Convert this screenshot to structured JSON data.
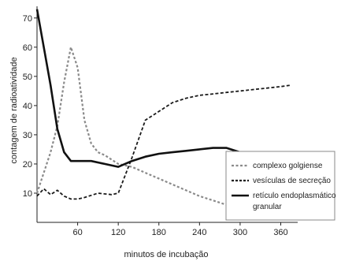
{
  "chart_data": {
    "type": "line",
    "xlabel": "minutos de incubação",
    "ylabel": "contagem de radioatividade",
    "xlim": [
      0,
      385
    ],
    "ylim": [
      0,
      74
    ],
    "xticks": [
      60,
      120,
      180,
      240,
      300,
      360
    ],
    "yticks": [
      10,
      20,
      30,
      40,
      50,
      60,
      70
    ],
    "legend_position": "right",
    "series": [
      {
        "name": "complexo golgiense",
        "style": "dotted",
        "color": "#8a8a8a",
        "x": [
          0,
          10,
          20,
          30,
          40,
          50,
          60,
          70,
          80,
          90,
          100,
          120,
          140,
          160,
          180,
          200,
          220,
          240,
          260,
          280,
          300,
          320,
          340,
          360,
          375
        ],
        "y": [
          10,
          17,
          24,
          33,
          48,
          60,
          53,
          35,
          27,
          24,
          23,
          20,
          19,
          17,
          15,
          13,
          11,
          9,
          7.5,
          6,
          5.5,
          5,
          4.8,
          4.5,
          4
        ]
      },
      {
        "name": "vesículas de secreção",
        "style": "dashed",
        "color": "#1a1a1a",
        "x": [
          0,
          10,
          20,
          30,
          40,
          50,
          60,
          70,
          90,
          110,
          120,
          140,
          160,
          180,
          200,
          220,
          240,
          260,
          280,
          300,
          320,
          340,
          360,
          375
        ],
        "y": [
          9,
          11.5,
          9.5,
          11,
          9,
          8,
          8,
          8.5,
          10,
          9.5,
          10,
          22,
          35,
          38,
          41,
          42.5,
          43.5,
          44,
          44.5,
          45,
          45.5,
          46,
          46.5,
          47
        ]
      },
      {
        "name": "retículo endoplasmático granular",
        "style": "solid",
        "color": "#111111",
        "x": [
          0,
          10,
          20,
          30,
          40,
          50,
          60,
          70,
          80,
          100,
          120,
          140,
          160,
          180,
          200,
          220,
          240,
          260,
          280,
          300,
          320,
          340,
          360,
          375
        ],
        "y": [
          73,
          60,
          47,
          32,
          24,
          21,
          21,
          21,
          21,
          20,
          19,
          21,
          22.5,
          23.5,
          24,
          24.5,
          25,
          25.5,
          25.5,
          24,
          23,
          21.5,
          20.5,
          19.5
        ]
      }
    ]
  }
}
